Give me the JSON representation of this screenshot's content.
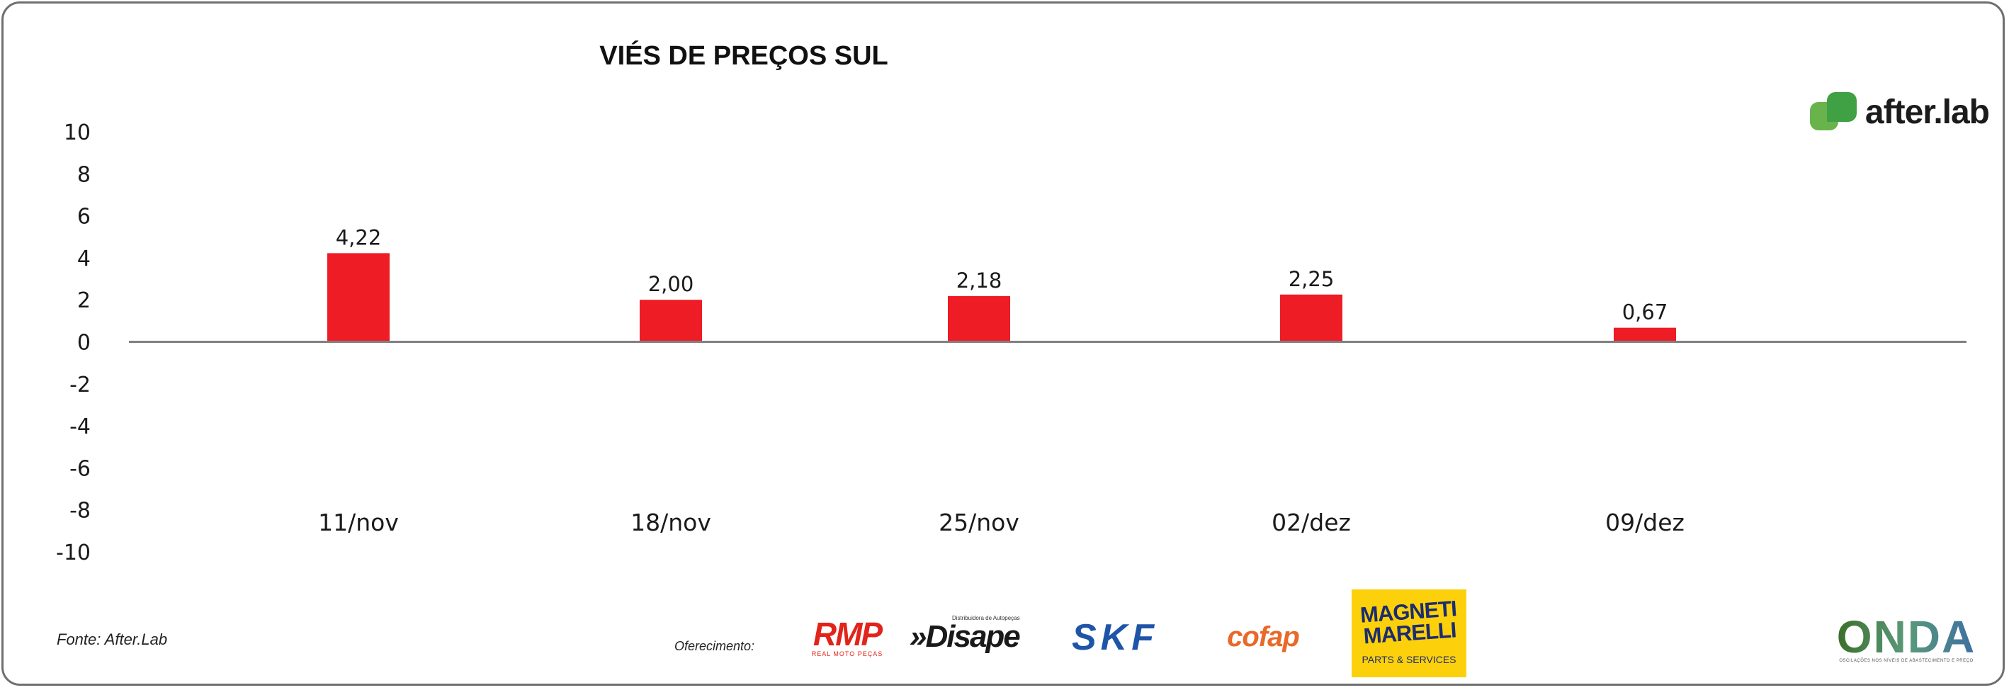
{
  "chart_data": {
    "type": "bar",
    "title": "VIÉS DE PREÇOS SUL",
    "categories": [
      "11/nov",
      "18/nov",
      "25/nov",
      "02/dez",
      "09/dez"
    ],
    "values": [
      4.22,
      2.0,
      2.18,
      2.25,
      0.67
    ],
    "data_labels": [
      "4,22",
      "2,00",
      "2,18",
      "2,25",
      "0,67"
    ],
    "y_ticks": [
      "10",
      "8",
      "6",
      "4",
      "2",
      "0",
      "-2",
      "-4",
      "-6",
      "-8",
      "-10"
    ],
    "ylim": [
      -10,
      10
    ],
    "xlabel": "",
    "ylabel": "",
    "grid": false,
    "legend": "none",
    "colors": {
      "bar": "#ee1c25",
      "axis": "#808080"
    }
  },
  "brand": {
    "name": "after.lab"
  },
  "footer": {
    "source": "Fonte: After.Lab",
    "offer_label": "Oferecimento:"
  },
  "sponsors": {
    "rmp": {
      "name": "RMP",
      "tagline": "REAL MOTO PEÇAS"
    },
    "disape": {
      "name": "»Disape",
      "tagline": "Distribuidora de Autopeças"
    },
    "skf": {
      "name": "SKF"
    },
    "cofap": {
      "name": "cofap"
    },
    "magneti": {
      "name": "MAGNETI MARELLI",
      "tagline": "PARTS & SERVICES"
    },
    "onda": {
      "name": "ONDA",
      "tagline": "OSCILAÇÕES NOS NÍVEIS DE ABASTECIMENTO E PREÇO"
    }
  }
}
